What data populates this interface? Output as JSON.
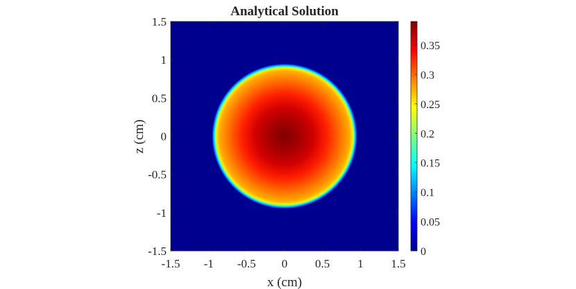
{
  "chart_data": {
    "type": "heatmap",
    "title": "Analytical Solution",
    "xlabel": "x (cm)",
    "ylabel": "z (cm)",
    "xlim": [
      -1.5,
      1.5
    ],
    "ylim": [
      -1.5,
      1.5
    ],
    "x_ticks": [
      "-1.5",
      "-1",
      "-0.5",
      "0",
      "0.5",
      "1",
      "1.5"
    ],
    "y_ticks": [
      "-1.5",
      "-1",
      "-0.5",
      "0",
      "0.5",
      "1",
      "1.5"
    ],
    "colorbar": {
      "range": [
        0,
        0.39
      ],
      "ticks": [
        "0",
        "0.05",
        "0.1",
        "0.15",
        "0.2",
        "0.25",
        "0.3",
        "0.35"
      ],
      "colormap": "jet"
    },
    "field": {
      "shape": "disk",
      "center": [
        0,
        0
      ],
      "radius": 0.95,
      "peak_value": 0.39,
      "edge_value": 0.25,
      "outside_value": 0
    }
  }
}
